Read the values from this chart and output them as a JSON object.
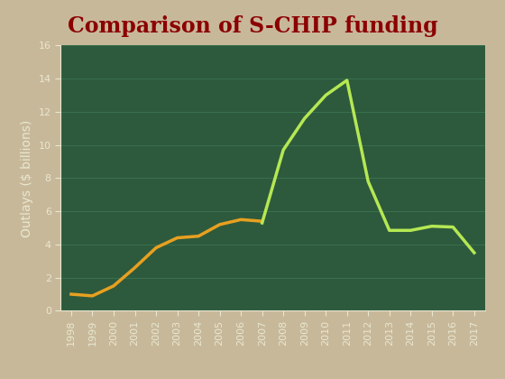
{
  "title": "Comparison of S-CHIP funding",
  "title_color": "#8B0000",
  "title_fontsize": 17,
  "ylabel": "Outlays ($ billions)",
  "ylabel_color": "#e8e8d0",
  "ylabel_fontsize": 10,
  "background_outer": "#c8b89a",
  "background_inner": "#2d5a3d",
  "tick_color": "#e8e8d0",
  "tick_fontsize": 8,
  "ylim": [
    0,
    16
  ],
  "yticks": [
    0,
    2,
    4,
    6,
    8,
    10,
    12,
    14,
    16
  ],
  "historic_years": [
    1998,
    1999,
    2000,
    2001,
    2002,
    2003,
    2004,
    2005,
    2006,
    2007
  ],
  "historic_values": [
    1.0,
    0.9,
    1.5,
    2.6,
    3.8,
    4.4,
    4.5,
    5.2,
    5.5,
    5.4
  ],
  "historic_color": "#e8a020",
  "historic_linewidth": 2.5,
  "hr976_years": [
    2007,
    2008,
    2009,
    2010,
    2011,
    2012,
    2013,
    2014,
    2015,
    2016,
    2017
  ],
  "hr976_values": [
    5.3,
    9.7,
    11.6,
    13.0,
    13.9,
    7.8,
    4.85,
    4.85,
    5.1,
    5.05,
    3.5
  ],
  "hr976_color": "#b5e853",
  "hr976_linewidth": 2.5,
  "legend_fontsize": 11,
  "legend_text_color": "#e8e8d0",
  "grid_color": "#3d7a55",
  "spine_color": "#e8e8d0",
  "xtick_labels": [
    "1998",
    "1999",
    "2000",
    "2001",
    "2002",
    "2003",
    "2004",
    "2005",
    "2006",
    "2007",
    "2008",
    "2009",
    "2010",
    "2011",
    "2012",
    "2013",
    "2014",
    "2015",
    "2016",
    "2017"
  ]
}
